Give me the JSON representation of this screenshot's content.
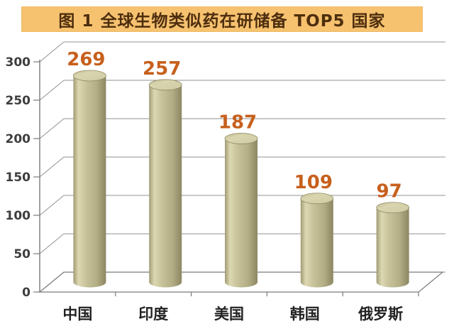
{
  "title": {
    "text": "图 1  全球生物类似药在研储备 TOP5 国家"
  },
  "chart_data": {
    "type": "bar",
    "style": "3d-cylinder",
    "title": "图 1  全球生物类似药在研储备 TOP5 国家",
    "categories": [
      "中国",
      "印度",
      "美国",
      "韩国",
      "俄罗斯"
    ],
    "values": [
      269,
      257,
      187,
      109,
      97
    ],
    "xlabel": "",
    "ylabel": "",
    "ylim": [
      0,
      300
    ],
    "yticks": [
      0,
      50,
      100,
      150,
      200,
      250,
      300
    ],
    "grid": true,
    "legend": false
  },
  "colors": {
    "title_bg": "#f6c26f",
    "title_text": "#4e2e0e",
    "data_label": "#c7601d",
    "bar_edge_dark": "#a29c76",
    "bar_light": "#dcd8b2",
    "bar_mid": "#c8c39a",
    "bar_dark": "#97916b",
    "bar_top": "#d9d5af",
    "bar_top_rim": "#8f8963",
    "grid": "#919191",
    "axis": "#7b7b7b",
    "tick_label": "#3d3d3d",
    "category_label": "#222222",
    "background": "#ffffff"
  }
}
